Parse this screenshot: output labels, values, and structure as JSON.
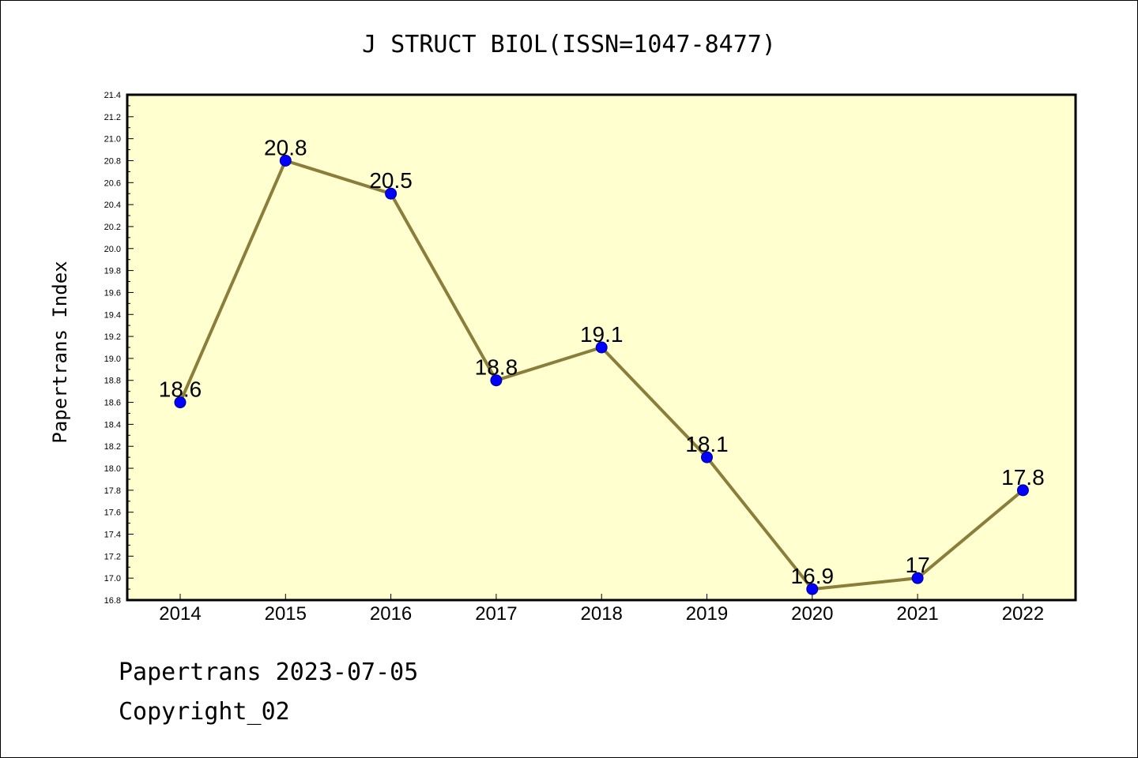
{
  "chart_data": {
    "type": "line",
    "title": "J STRUCT BIOL(ISSN=1047-8477)",
    "xlabel": "",
    "ylabel": "Papertrans Index",
    "categories": [
      "2014",
      "2015",
      "2016",
      "2017",
      "2018",
      "2019",
      "2020",
      "2021",
      "2022"
    ],
    "values": [
      18.6,
      20.8,
      20.5,
      18.8,
      19.1,
      18.1,
      16.9,
      17.0,
      17.8
    ],
    "data_labels": [
      "18.6",
      "20.8",
      "20.5",
      "18.8",
      "19.1",
      "18.1",
      "16.9",
      "17",
      "17.8"
    ],
    "ylim": [
      16.8,
      21.4
    ],
    "ytick_step": 0.2,
    "grid": false,
    "line_color": "#8b7d3a",
    "marker_color": "#0000ff",
    "plot_background": "#ffffd0"
  },
  "footer": {
    "line1": "Papertrans 2023-07-05",
    "line2": "Copyright_02"
  }
}
